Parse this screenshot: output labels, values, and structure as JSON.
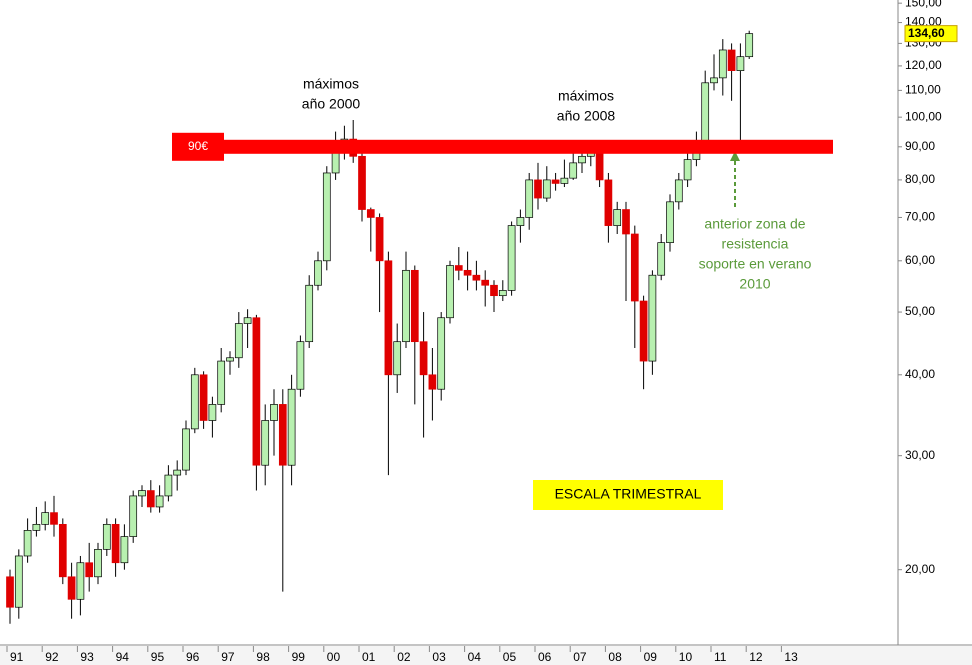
{
  "chart_data": {
    "type": "candlestick",
    "log_scale": true,
    "categories": [
      "91",
      null,
      null,
      null,
      "92",
      null,
      null,
      null,
      "93",
      null,
      null,
      null,
      "94",
      null,
      null,
      null,
      "95",
      null,
      null,
      null,
      "96",
      null,
      null,
      null,
      "97",
      null,
      null,
      null,
      "98",
      null,
      null,
      null,
      "99",
      null,
      null,
      null,
      "00",
      null,
      null,
      null,
      "01",
      null,
      null,
      null,
      "02",
      null,
      null,
      null,
      "03",
      null,
      null,
      null,
      "04",
      null,
      null,
      null,
      "05",
      null,
      null,
      null,
      "06",
      null,
      null,
      null,
      "07",
      null,
      null,
      null,
      "08",
      null,
      null,
      null,
      "09",
      null,
      null,
      null,
      "10",
      null,
      null,
      null,
      "11",
      null,
      null,
      null,
      "12",
      null,
      null,
      null,
      "13"
    ],
    "open": [
      19.5,
      17.5,
      21,
      23,
      23.5,
      24.5,
      23.5,
      19.5,
      18,
      20.5,
      19.5,
      21.5,
      23.5,
      20.5,
      22.5,
      26,
      26.5,
      25,
      26,
      28,
      28.5,
      33,
      40,
      34,
      36,
      42,
      42.5,
      48,
      49,
      29,
      34,
      36,
      29,
      38,
      45,
      55,
      60,
      82,
      92,
      92.5,
      87,
      72,
      70,
      60,
      40,
      45,
      58,
      45,
      40,
      38,
      49,
      59,
      58,
      57,
      56,
      55,
      53,
      54,
      68,
      70,
      80,
      75,
      80,
      79,
      80.5,
      85,
      87,
      88,
      80,
      68,
      72,
      66,
      52,
      42,
      57,
      64,
      74,
      80,
      86,
      90,
      113,
      115,
      127,
      118,
      124,
      null,
      null,
      null,
      null
    ],
    "high": [
      20,
      21.5,
      24,
      25,
      25.5,
      26,
      24,
      20.5,
      21,
      22,
      22,
      24,
      24,
      23.5,
      26.5,
      27,
      27.5,
      27,
      29,
      29.5,
      34,
      41,
      40.5,
      37,
      44,
      43.5,
      50,
      50.5,
      49.5,
      36,
      38,
      38,
      40,
      46,
      57,
      62,
      84,
      95,
      97,
      99,
      88,
      72.5,
      71,
      62,
      48,
      62,
      59,
      50,
      44,
      50,
      60,
      63,
      62,
      60,
      58,
      56,
      56,
      69,
      72,
      82,
      85,
      84,
      82,
      86,
      88,
      92,
      91,
      90,
      82,
      74,
      74,
      68,
      53,
      58,
      66,
      76,
      82,
      90,
      95,
      118,
      125,
      132,
      130,
      130,
      136,
      null,
      null,
      null,
      null
    ],
    "low": [
      16.5,
      16.8,
      20.5,
      22.5,
      23,
      22.5,
      19,
      16.8,
      17,
      18.5,
      19,
      21,
      19.5,
      20,
      22,
      25,
      24.5,
      24.5,
      25.5,
      26.5,
      28,
      32.5,
      33,
      32,
      35,
      40,
      41,
      44,
      26.5,
      27,
      30,
      18.5,
      27,
      37,
      44,
      54,
      58,
      80,
      86,
      85,
      69,
      62,
      50,
      28,
      37.5,
      44,
      36,
      32,
      34,
      36.5,
      48,
      56,
      54,
      54,
      51,
      50,
      52,
      53,
      64,
      67,
      72,
      74,
      77,
      78,
      80,
      82,
      84,
      78,
      64,
      66,
      52,
      44,
      38,
      40,
      56,
      62,
      72,
      78,
      84,
      88,
      110,
      108,
      106,
      90,
      123,
      null,
      null,
      null,
      null
    ],
    "close": [
      17.5,
      21,
      23,
      23.5,
      24.5,
      23.5,
      19.5,
      18,
      20.5,
      19.5,
      21.5,
      23.5,
      20.5,
      22.5,
      26,
      26.5,
      25,
      26,
      28,
      28.5,
      33,
      40,
      34,
      36,
      42,
      42.5,
      48,
      49,
      29,
      34,
      36,
      29,
      38,
      45,
      55,
      60,
      82,
      92,
      92.5,
      87,
      72,
      70,
      60,
      40,
      45,
      58,
      45,
      40,
      38,
      49,
      59,
      58,
      57,
      56,
      55,
      53,
      54,
      68,
      70,
      80,
      75,
      80,
      79,
      80.5,
      85,
      87,
      88,
      80,
      68,
      72,
      66,
      52,
      42,
      57,
      64,
      74,
      80,
      86,
      90,
      113,
      115,
      127,
      118,
      124,
      134.6,
      null,
      null,
      null,
      null
    ],
    "up_color": "#b8f0b0",
    "down_color": "#e00000",
    "ylim": [
      15.3,
      151.7
    ],
    "yticks": [
      {
        "value": 20,
        "label": "20,00"
      },
      {
        "value": 30,
        "label": "30,00"
      },
      {
        "value": 40,
        "label": "40,00"
      },
      {
        "value": 50,
        "label": "50,00"
      },
      {
        "value": 60,
        "label": "60,00"
      },
      {
        "value": 70,
        "label": "70,00"
      },
      {
        "value": 80,
        "label": "80,00"
      },
      {
        "value": 90,
        "label": "90,00"
      },
      {
        "value": 100,
        "label": "100,00"
      },
      {
        "value": 110,
        "label": "110,00"
      },
      {
        "value": 120,
        "label": "120,00"
      },
      {
        "value": 130,
        "label": "130,00"
      },
      {
        "value": 140,
        "label": "140,00"
      },
      {
        "value": 150,
        "label": "150,00"
      }
    ],
    "last_price": {
      "value": 134.6,
      "label": "134,60"
    },
    "resistance": {
      "value": 90,
      "label": "90€",
      "color": "#ff0000"
    },
    "annotations": {
      "max_2000": [
        "máximos",
        "año 2000"
      ],
      "max_2008": [
        "máximos",
        "año 2008"
      ],
      "support": [
        "anterior zona de",
        "resistencia",
        "soporte en verano",
        "2010"
      ],
      "scale": "ESCALA TRIMESTRAL"
    }
  }
}
